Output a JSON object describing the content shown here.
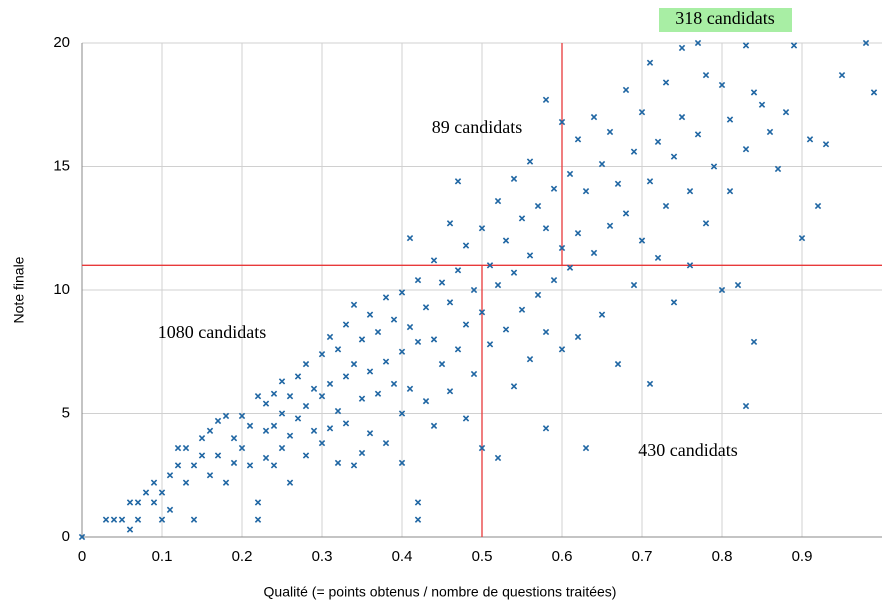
{
  "chart_data": {
    "type": "scatter",
    "x_label": "Qualité (= points obtenus / nombre de questions traitées)",
    "y_label": "Note finale",
    "color": "#1f66a3",
    "line_color": "#e8393a",
    "grid": true,
    "xlim": [
      0,
      1
    ],
    "ylim": [
      0,
      20
    ],
    "xticks": [
      0,
      0.1,
      0.2,
      0.3,
      0.4,
      0.5,
      0.6,
      0.7,
      0.8,
      0.9
    ],
    "yticks": [
      0,
      5,
      10,
      15,
      20
    ],
    "hline": 11,
    "vlines": [
      {
        "x": 0.5,
        "y_range": [
          0,
          11
        ]
      },
      {
        "x": 0.6,
        "y_range": [
          11,
          20
        ]
      }
    ],
    "annotations": [
      "318 candidats",
      "89 candidats",
      "1080 candidats",
      "430 candidats"
    ],
    "series": [
      {
        "name": "Candidats",
        "x": [
          0,
          0.03,
          0.04,
          0.05,
          0.06,
          0.06,
          0.07,
          0.07,
          0.08,
          0.09,
          0.09,
          0.1,
          0.1,
          0.11,
          0.11,
          0.12,
          0.12,
          0.13,
          0.13,
          0.14,
          0.14,
          0.15,
          0.15,
          0.16,
          0.16,
          0.17,
          0.17,
          0.18,
          0.18,
          0.19,
          0.19,
          0.2,
          0.2,
          0.21,
          0.21,
          0.22,
          0.22,
          0.22,
          0.23,
          0.23,
          0.23,
          0.24,
          0.24,
          0.24,
          0.25,
          0.25,
          0.25,
          0.26,
          0.26,
          0.26,
          0.27,
          0.27,
          0.28,
          0.28,
          0.28,
          0.29,
          0.29,
          0.3,
          0.3,
          0.3,
          0.31,
          0.31,
          0.31,
          0.32,
          0.32,
          0.32,
          0.33,
          0.33,
          0.33,
          0.34,
          0.34,
          0.34,
          0.35,
          0.35,
          0.35,
          0.36,
          0.36,
          0.36,
          0.37,
          0.37,
          0.38,
          0.38,
          0.38,
          0.39,
          0.39,
          0.4,
          0.4,
          0.4,
          0.4,
          0.41,
          0.41,
          0.41,
          0.42,
          0.42,
          0.42,
          0.42,
          0.43,
          0.43,
          0.44,
          0.44,
          0.44,
          0.45,
          0.45,
          0.46,
          0.46,
          0.46,
          0.47,
          0.47,
          0.47,
          0.48,
          0.48,
          0.48,
          0.49,
          0.49,
          0.5,
          0.5,
          0.5,
          0.51,
          0.51,
          0.52,
          0.52,
          0.52,
          0.53,
          0.53,
          0.54,
          0.54,
          0.54,
          0.55,
          0.55,
          0.56,
          0.56,
          0.56,
          0.57,
          0.57,
          0.58,
          0.58,
          0.58,
          0.58,
          0.59,
          0.59,
          0.6,
          0.6,
          0.6,
          0.61,
          0.61,
          0.62,
          0.62,
          0.62,
          0.63,
          0.63,
          0.64,
          0.64,
          0.65,
          0.65,
          0.66,
          0.66,
          0.67,
          0.67,
          0.68,
          0.68,
          0.69,
          0.69,
          0.7,
          0.7,
          0.71,
          0.71,
          0.71,
          0.72,
          0.72,
          0.73,
          0.73,
          0.74,
          0.74,
          0.75,
          0.75,
          0.76,
          0.76,
          0.77,
          0.77,
          0.78,
          0.78,
          0.79,
          0.8,
          0.8,
          0.81,
          0.81,
          0.82,
          0.83,
          0.83,
          0.83,
          0.84,
          0.84,
          0.85,
          0.86,
          0.87,
          0.88,
          0.89,
          0.9,
          0.91,
          0.92,
          0.93,
          0.95,
          0.98,
          0.99
        ],
        "values": [
          0,
          0.7,
          0.7,
          0.7,
          0.3,
          1.4,
          0.7,
          1.4,
          1.8,
          1.4,
          2.2,
          0.7,
          1.8,
          2.5,
          1.1,
          2.9,
          3.6,
          2.2,
          3.6,
          0.7,
          2.9,
          3.3,
          4.0,
          4.3,
          2.5,
          4.7,
          3.3,
          2.2,
          4.9,
          4.0,
          3.0,
          4.9,
          3.6,
          4.5,
          2.9,
          5.7,
          0.7,
          1.4,
          5.4,
          4.3,
          3.2,
          5.8,
          4.5,
          2.9,
          6.3,
          5.0,
          3.6,
          5.7,
          4.1,
          2.2,
          6.5,
          4.8,
          7.0,
          5.3,
          3.3,
          6.0,
          4.3,
          7.4,
          5.7,
          3.8,
          8.1,
          6.2,
          4.4,
          7.6,
          5.1,
          3.0,
          8.6,
          6.5,
          4.6,
          9.4,
          7.0,
          2.9,
          8.0,
          5.6,
          3.4,
          9.0,
          6.7,
          4.2,
          8.3,
          5.8,
          9.7,
          7.1,
          3.8,
          8.8,
          6.2,
          9.9,
          7.5,
          5.0,
          3.0,
          12.1,
          8.5,
          6.0,
          10.4,
          7.9,
          1.4,
          0.7,
          9.3,
          5.5,
          11.2,
          8.0,
          4.5,
          10.3,
          7.0,
          12.7,
          9.5,
          5.9,
          14.4,
          10.8,
          7.6,
          11.8,
          8.6,
          4.8,
          10.0,
          6.6,
          12.5,
          9.1,
          3.6,
          11.0,
          7.8,
          13.6,
          10.2,
          3.2,
          12.0,
          8.4,
          14.5,
          10.7,
          6.1,
          12.9,
          9.2,
          15.2,
          11.4,
          7.2,
          13.4,
          9.8,
          17.7,
          12.5,
          8.3,
          4.4,
          14.1,
          10.4,
          16.8,
          11.7,
          7.6,
          14.7,
          10.9,
          16.1,
          12.3,
          8.1,
          14.0,
          3.6,
          17.0,
          11.5,
          15.1,
          9.0,
          16.4,
          12.6,
          14.3,
          7.0,
          18.1,
          13.1,
          15.6,
          10.2,
          17.2,
          12.0,
          19.2,
          14.4,
          6.2,
          16.0,
          11.3,
          18.4,
          13.4,
          15.4,
          9.5,
          19.8,
          17.0,
          14.0,
          11.0,
          20.0,
          16.3,
          18.7,
          12.7,
          15.0,
          18.3,
          10.0,
          16.9,
          14.0,
          10.2,
          19.9,
          15.7,
          5.3,
          18.0,
          7.9,
          17.5,
          16.4,
          14.9,
          17.2,
          19.9,
          12.1,
          16.1,
          13.4,
          15.9,
          18.7,
          20.0,
          18.0
        ]
      }
    ]
  }
}
